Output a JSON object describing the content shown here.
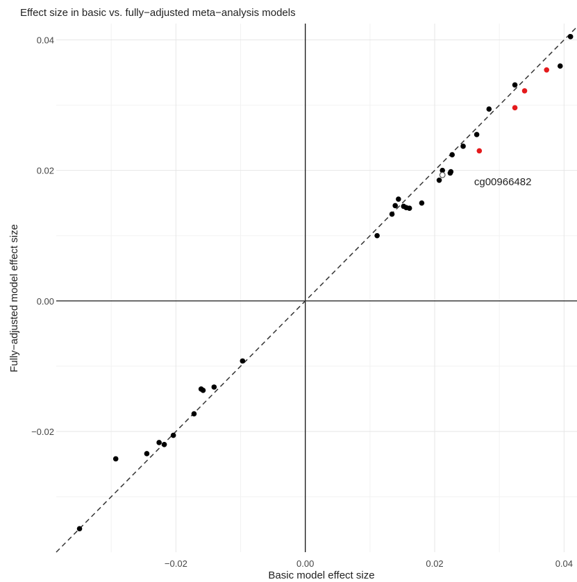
{
  "chart_data": {
    "type": "scatter",
    "title": "Effect size in basic vs. fully−adjusted meta−analysis models",
    "xlabel": "Basic model effect size",
    "ylabel": "Fully−adjusted model effect size",
    "xlim": [
      -0.0385,
      0.042
    ],
    "ylim": [
      -0.0385,
      0.0425
    ],
    "xticks": [
      -0.02,
      0.0,
      0.02,
      0.04
    ],
    "xtick_labels": [
      "−0.02",
      "0.00",
      "0.02",
      "0.04"
    ],
    "yticks": [
      -0.02,
      0.0,
      0.02,
      0.04
    ],
    "ytick_labels": [
      "−0.02",
      "0.00",
      "0.02",
      "0.04"
    ],
    "grid": true,
    "reference_line": "y = x (dashed)",
    "colors": {
      "black": "#000000",
      "red": "#e41a1c",
      "hollow": "#ffffff"
    },
    "points": [
      {
        "x": -0.0349,
        "y": -0.0349,
        "color": "black"
      },
      {
        "x": -0.0293,
        "y": -0.0242,
        "color": "black"
      },
      {
        "x": -0.0245,
        "y": -0.0234,
        "color": "black"
      },
      {
        "x": -0.0226,
        "y": -0.0217,
        "color": "black"
      },
      {
        "x": -0.0218,
        "y": -0.022,
        "color": "black"
      },
      {
        "x": -0.0204,
        "y": -0.0206,
        "color": "black"
      },
      {
        "x": -0.0172,
        "y": -0.0173,
        "color": "black"
      },
      {
        "x": -0.0161,
        "y": -0.0135,
        "color": "black"
      },
      {
        "x": -0.0158,
        "y": -0.0137,
        "color": "black"
      },
      {
        "x": -0.0141,
        "y": -0.0132,
        "color": "black"
      },
      {
        "x": -0.0097,
        "y": -0.0092,
        "color": "black"
      },
      {
        "x": 0.0111,
        "y": 0.01,
        "color": "black"
      },
      {
        "x": 0.0134,
        "y": 0.0133,
        "color": "black"
      },
      {
        "x": 0.0139,
        "y": 0.0146,
        "color": "black"
      },
      {
        "x": 0.0144,
        "y": 0.0156,
        "color": "black"
      },
      {
        "x": 0.0152,
        "y": 0.0145,
        "color": "black"
      },
      {
        "x": 0.0156,
        "y": 0.0143,
        "color": "black"
      },
      {
        "x": 0.0161,
        "y": 0.0142,
        "color": "black"
      },
      {
        "x": 0.018,
        "y": 0.015,
        "color": "black"
      },
      {
        "x": 0.0207,
        "y": 0.0185,
        "color": "black"
      },
      {
        "x": 0.0212,
        "y": 0.02,
        "color": "black"
      },
      {
        "x": 0.0224,
        "y": 0.0196,
        "color": "black"
      },
      {
        "x": 0.0225,
        "y": 0.0198,
        "color": "black"
      },
      {
        "x": 0.0227,
        "y": 0.0224,
        "color": "black"
      },
      {
        "x": 0.0244,
        "y": 0.0237,
        "color": "black"
      },
      {
        "x": 0.0265,
        "y": 0.0255,
        "color": "black"
      },
      {
        "x": 0.0284,
        "y": 0.0294,
        "color": "black"
      },
      {
        "x": 0.0324,
        "y": 0.0331,
        "color": "black"
      },
      {
        "x": 0.0394,
        "y": 0.036,
        "color": "black"
      },
      {
        "x": 0.041,
        "y": 0.0405,
        "color": "black"
      },
      {
        "x": 0.0269,
        "y": 0.023,
        "color": "red"
      },
      {
        "x": 0.0324,
        "y": 0.0296,
        "color": "red"
      },
      {
        "x": 0.0339,
        "y": 0.0322,
        "color": "red"
      },
      {
        "x": 0.0373,
        "y": 0.0354,
        "color": "red"
      },
      {
        "x": 0.0212,
        "y": 0.0193,
        "color": "hollow"
      }
    ],
    "annotations": [
      {
        "text": "cg00966482",
        "x": 0.0261,
        "y": 0.019
      }
    ]
  }
}
